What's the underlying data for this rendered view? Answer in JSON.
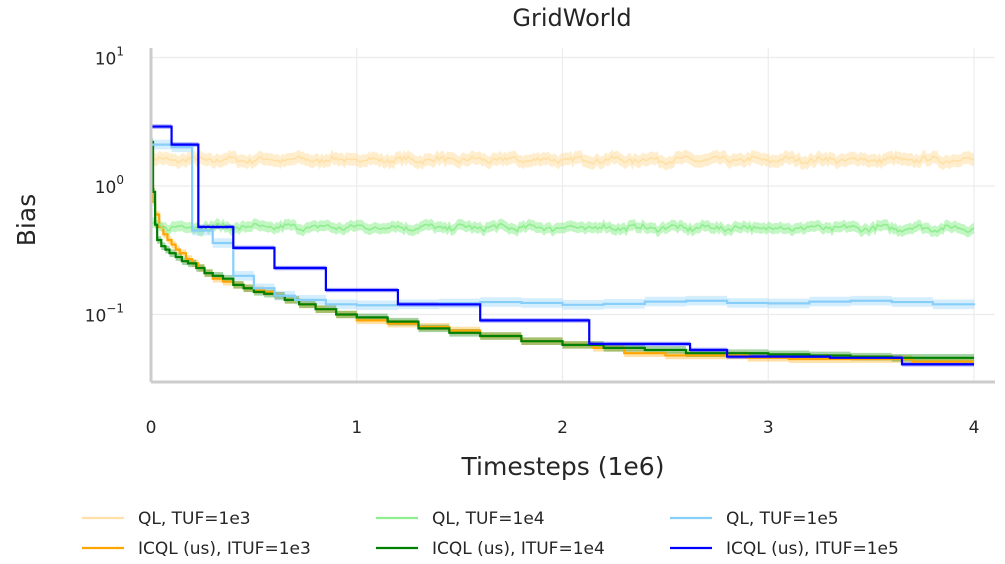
{
  "chart_data": {
    "type": "line",
    "title": "GridWorld",
    "xlabel": "Timesteps (1e6)",
    "ylabel": "Bias",
    "xscale": "linear",
    "yscale": "log",
    "xlim": [
      0,
      4.1
    ],
    "ylim": [
      0.028,
      10
    ],
    "xticks": [
      0,
      1,
      2,
      3,
      4
    ],
    "xtick_labels": [
      "0",
      "1",
      "2",
      "3",
      "4"
    ],
    "yticks": [
      {
        "value": 0.1,
        "base": "10",
        "exp": "−1"
      },
      {
        "value": 1,
        "base": "10",
        "exp": "0"
      },
      {
        "value": 10,
        "base": "10",
        "exp": "1"
      }
    ],
    "grid": true,
    "legend_position": "bottom",
    "series": [
      {
        "name": "QL, TUF=1e3",
        "color": "#ffe0a6",
        "style": "noisy",
        "band": 0.12,
        "x": [
          0,
          0.02,
          4.0
        ],
        "y": [
          1.6,
          1.6,
          1.6
        ]
      },
      {
        "name": "ICQL (us), ITUF=1e3",
        "color": "#ffa500",
        "style": "step",
        "band": 0.07,
        "x": [
          0,
          0.01,
          0.02,
          0.04,
          0.06,
          0.08,
          0.1,
          0.12,
          0.14,
          0.17,
          0.2,
          0.23,
          0.26,
          0.3,
          0.35,
          0.4,
          0.45,
          0.5,
          0.55,
          0.6,
          0.65,
          0.72,
          0.8,
          0.9,
          1.0,
          1.15,
          1.3,
          1.45,
          1.6,
          1.8,
          2.0,
          2.15,
          2.3,
          2.5,
          2.7,
          2.9,
          3.1,
          3.3,
          3.5,
          3.7,
          4.0
        ],
        "y": [
          1.0,
          0.75,
          0.6,
          0.48,
          0.42,
          0.38,
          0.35,
          0.32,
          0.3,
          0.27,
          0.25,
          0.23,
          0.21,
          0.19,
          0.18,
          0.17,
          0.16,
          0.155,
          0.15,
          0.14,
          0.13,
          0.12,
          0.11,
          0.1,
          0.09,
          0.085,
          0.08,
          0.075,
          0.068,
          0.062,
          0.058,
          0.055,
          0.05,
          0.048,
          0.048,
          0.046,
          0.045,
          0.045,
          0.045,
          0.043,
          0.043
        ]
      },
      {
        "name": "QL, TUF=1e4",
        "color": "#90ee90",
        "style": "noisy",
        "band": 0.1,
        "x": [
          0,
          0.02,
          0.06,
          4.0
        ],
        "y": [
          0.5,
          0.5,
          0.48,
          0.47
        ]
      },
      {
        "name": "ICQL (us), ITUF=1e4",
        "color": "#008000",
        "style": "step",
        "band": 0.07,
        "x": [
          0,
          0.01,
          0.02,
          0.03,
          0.05,
          0.07,
          0.09,
          0.12,
          0.15,
          0.18,
          0.22,
          0.26,
          0.3,
          0.35,
          0.4,
          0.45,
          0.5,
          0.55,
          0.6,
          0.65,
          0.72,
          0.8,
          0.9,
          1.0,
          1.15,
          1.3,
          1.45,
          1.6,
          1.8,
          2.0,
          2.2,
          2.4,
          2.6,
          2.8,
          3.0,
          3.2,
          3.4,
          3.6,
          3.8,
          4.0
        ],
        "y": [
          2.2,
          0.9,
          0.5,
          0.38,
          0.34,
          0.32,
          0.3,
          0.28,
          0.26,
          0.25,
          0.23,
          0.21,
          0.2,
          0.19,
          0.17,
          0.16,
          0.15,
          0.145,
          0.14,
          0.13,
          0.12,
          0.11,
          0.1,
          0.095,
          0.088,
          0.078,
          0.072,
          0.068,
          0.062,
          0.058,
          0.055,
          0.053,
          0.05,
          0.05,
          0.049,
          0.048,
          0.047,
          0.046,
          0.046,
          0.046
        ]
      },
      {
        "name": "QL, TUF=1e5",
        "color": "#87cefa",
        "style": "step",
        "band": 0.09,
        "x": [
          0,
          0.1,
          0.2,
          0.3,
          0.4,
          0.5,
          0.6,
          0.7,
          0.85,
          1.0,
          1.2,
          1.4,
          1.6,
          1.8,
          2.0,
          2.2,
          2.4,
          2.6,
          2.8,
          3.0,
          3.2,
          3.4,
          3.6,
          3.8,
          4.0
        ],
        "y": [
          2.1,
          2.0,
          0.45,
          0.36,
          0.2,
          0.16,
          0.14,
          0.13,
          0.12,
          0.118,
          0.12,
          0.122,
          0.125,
          0.123,
          0.119,
          0.121,
          0.126,
          0.128,
          0.123,
          0.122,
          0.126,
          0.128,
          0.125,
          0.12,
          0.118
        ]
      },
      {
        "name": "ICQL (us), ITUF=1e5",
        "color": "#0000ff",
        "style": "step",
        "band": 0.04,
        "x": [
          0,
          0.05,
          0.1,
          0.23,
          0.4,
          0.6,
          0.85,
          1.2,
          1.6,
          2.13,
          2.28,
          2.62,
          2.8,
          3.3,
          3.65,
          4.0
        ],
        "y": [
          2.9,
          2.9,
          2.1,
          0.48,
          0.33,
          0.23,
          0.155,
          0.12,
          0.09,
          0.059,
          0.059,
          0.053,
          0.047,
          0.046,
          0.041,
          0.041
        ]
      }
    ]
  }
}
